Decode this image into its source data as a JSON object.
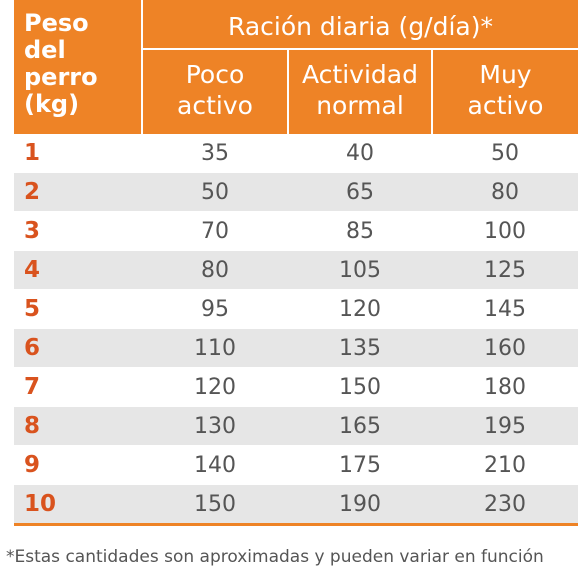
{
  "header": {
    "weight_lines": [
      "Peso",
      "del",
      "perro",
      "(kg)"
    ],
    "ration_title": "Ración diaria (g/día)*",
    "columns": [
      {
        "lines": [
          "Poco",
          "activo"
        ]
      },
      {
        "lines": [
          "Actividad",
          "normal"
        ]
      },
      {
        "lines": [
          "Muy",
          "activo"
        ]
      }
    ]
  },
  "rows": [
    {
      "weight": "1",
      "poco": "35",
      "normal": "40",
      "muy": "50"
    },
    {
      "weight": "2",
      "poco": "50",
      "normal": "65",
      "muy": "80"
    },
    {
      "weight": "3",
      "poco": "70",
      "normal": "85",
      "muy": "100"
    },
    {
      "weight": "4",
      "poco": "80",
      "normal": "105",
      "muy": "125"
    },
    {
      "weight": "5",
      "poco": "95",
      "normal": "120",
      "muy": "145"
    },
    {
      "weight": "6",
      "poco": "110",
      "normal": "135",
      "muy": "160"
    },
    {
      "weight": "7",
      "poco": "120",
      "normal": "150",
      "muy": "180"
    },
    {
      "weight": "8",
      "poco": "130",
      "normal": "165",
      "muy": "195"
    },
    {
      "weight": "9",
      "poco": "140",
      "normal": "175",
      "muy": "210"
    },
    {
      "weight": "10",
      "poco": "150",
      "normal": "190",
      "muy": "230"
    }
  ],
  "footnote": "*Estas cantidades son aproximadas y pueden variar en función",
  "colors": {
    "header_bg": "#ee8326",
    "weight_text": "#d9531e",
    "stripe": "#e6e6e6",
    "value_text": "#555555"
  }
}
